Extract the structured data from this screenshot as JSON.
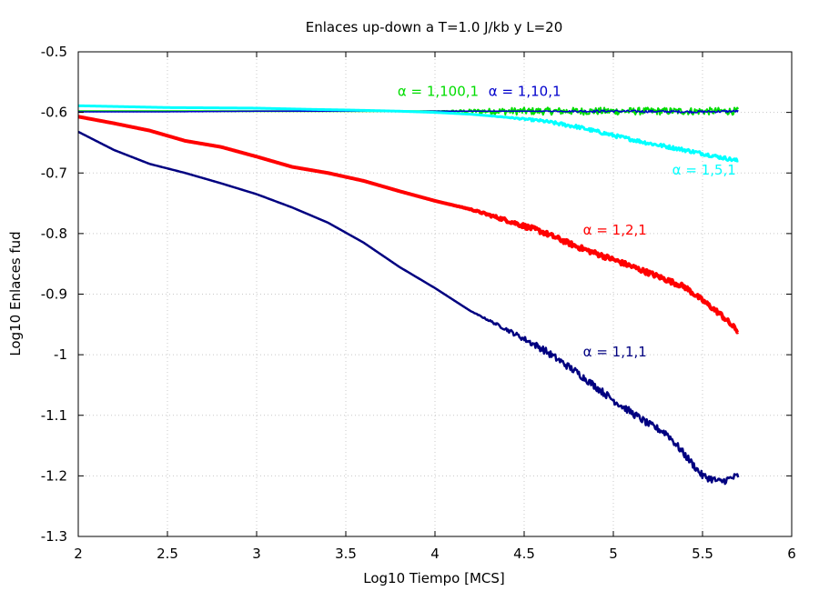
{
  "chart_data": {
    "type": "line",
    "title": "Enlaces up-down a T=1.0 J/kb y L=20",
    "xlabel": "Log10 Tiempo [MCS]",
    "ylabel": "Log10 Enlaces fud",
    "xlim": [
      2,
      6
    ],
    "ylim": [
      -1.3,
      -0.5
    ],
    "xticks": [
      "2",
      "2.5",
      "3",
      "3.5",
      "4",
      "4.5",
      "5",
      "5.5",
      "6"
    ],
    "yticks": [
      "-0.5",
      "-0.6",
      "-0.7",
      "-0.8",
      "-0.9",
      "-1",
      "-1.1",
      "-1.2",
      "-1.3"
    ],
    "grid": true,
    "series": [
      {
        "name": "α = 1,100,1",
        "color": "#00dd00",
        "width": 2,
        "noise": 0.006,
        "noise_from": 4.0,
        "x": [
          2.0,
          2.5,
          3.0,
          3.5,
          4.0,
          4.5,
          5.0,
          5.5,
          5.7
        ],
        "y": [
          -0.598,
          -0.598,
          -0.598,
          -0.598,
          -0.598,
          -0.598,
          -0.598,
          -0.598,
          -0.598
        ]
      },
      {
        "name": "α = 1,10,1",
        "color": "#0000cc",
        "width": 1.5,
        "noise": 0.002,
        "noise_from": 4.5,
        "x": [
          2.0,
          2.5,
          3.0,
          3.5,
          4.0,
          4.5,
          5.0,
          5.5,
          5.7
        ],
        "y": [
          -0.599,
          -0.599,
          -0.598,
          -0.598,
          -0.598,
          -0.598,
          -0.598,
          -0.599,
          -0.598
        ]
      },
      {
        "name": "α = 1,5,1",
        "color": "#00ffff",
        "width": 3,
        "noise": 0.003,
        "noise_from": 4.3,
        "x": [
          2.0,
          2.5,
          3.0,
          3.3,
          3.5,
          3.8,
          4.0,
          4.2,
          4.4,
          4.6,
          4.8,
          5.0,
          5.2,
          5.4,
          5.6,
          5.7
        ],
        "y": [
          -0.589,
          -0.592,
          -0.593,
          -0.595,
          -0.596,
          -0.598,
          -0.6,
          -0.603,
          -0.608,
          -0.614,
          -0.624,
          -0.638,
          -0.651,
          -0.662,
          -0.674,
          -0.68
        ]
      },
      {
        "name": "α = 1,2,1",
        "color": "#ff0000",
        "width": 4,
        "noise": 0.004,
        "noise_from": 4.1,
        "x": [
          2.0,
          2.2,
          2.4,
          2.6,
          2.8,
          3.0,
          3.2,
          3.4,
          3.6,
          3.8,
          4.0,
          4.2,
          4.4,
          4.6,
          4.8,
          5.0,
          5.2,
          5.4,
          5.6,
          5.7
        ],
        "y": [
          -0.607,
          -0.618,
          -0.63,
          -0.647,
          -0.657,
          -0.673,
          -0.69,
          -0.7,
          -0.713,
          -0.73,
          -0.746,
          -0.76,
          -0.778,
          -0.797,
          -0.822,
          -0.843,
          -0.865,
          -0.888,
          -0.933,
          -0.962
        ]
      },
      {
        "name": "α = 1,1,1",
        "color": "#000080",
        "width": 2.5,
        "noise": 0.006,
        "noise_from": 4.2,
        "x": [
          2.0,
          2.2,
          2.4,
          2.6,
          2.8,
          3.0,
          3.2,
          3.4,
          3.6,
          3.8,
          4.0,
          4.2,
          4.4,
          4.6,
          4.8,
          5.0,
          5.2,
          5.3,
          5.4,
          5.5,
          5.6,
          5.7
        ],
        "y": [
          -0.632,
          -0.662,
          -0.685,
          -0.7,
          -0.717,
          -0.735,
          -0.757,
          -0.782,
          -0.815,
          -0.855,
          -0.89,
          -0.928,
          -0.958,
          -0.99,
          -1.03,
          -1.075,
          -1.115,
          -1.13,
          -1.165,
          -1.2,
          -1.21,
          -1.2
        ]
      }
    ],
    "annotations": [
      {
        "text": "α = 1,100,1",
        "color": "#00dd00",
        "x": 3.79,
        "y": -0.573
      },
      {
        "text": "α = 1,10,1",
        "color": "#0000cc",
        "x": 4.3,
        "y": -0.573
      },
      {
        "text": "α = 1,5,1",
        "color": "#00ffff",
        "x": 5.33,
        "y": -0.703
      },
      {
        "text": "α = 1,2,1",
        "color": "#ff0000",
        "x": 4.83,
        "y": -0.802
      },
      {
        "text": "α = 1,1,1",
        "color": "#000080",
        "x": 4.83,
        "y": -1.003
      }
    ]
  }
}
